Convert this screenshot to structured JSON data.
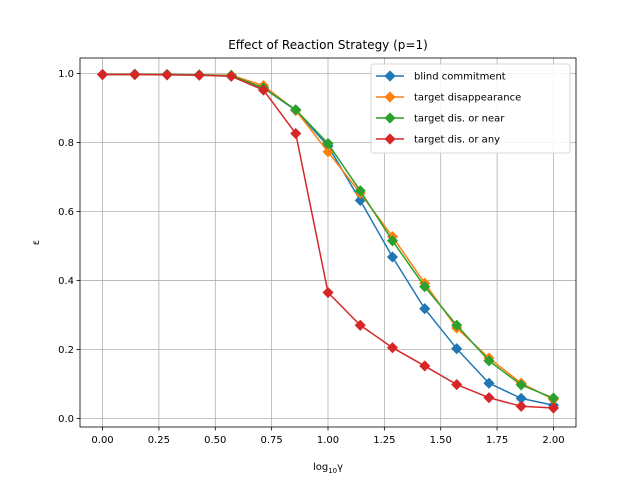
{
  "chart_data": {
    "type": "line",
    "title": "Effect of Reaction Strategy (p=1)",
    "xlabel_base": "log",
    "xlabel_sub": "10",
    "xlabel_var": "γ",
    "ylabel": "ε",
    "xlim": [
      -0.1,
      2.1
    ],
    "ylim": [
      -0.025,
      1.045
    ],
    "grid": true,
    "legend_position": "top-right",
    "xticks": [
      0.0,
      0.25,
      0.5,
      0.75,
      1.0,
      1.25,
      1.5,
      1.75,
      2.0
    ],
    "xtick_labels": [
      "0.00",
      "0.25",
      "0.50",
      "0.75",
      "1.00",
      "1.25",
      "1.50",
      "1.75",
      "2.00"
    ],
    "yticks": [
      0.0,
      0.2,
      0.4,
      0.6,
      0.8,
      1.0
    ],
    "ytick_labels": [
      "0.0",
      "0.2",
      "0.4",
      "0.6",
      "0.8",
      "1.0"
    ],
    "x": [
      0.0,
      0.143,
      0.286,
      0.429,
      0.571,
      0.714,
      0.857,
      1.0,
      1.143,
      1.286,
      1.429,
      1.571,
      1.714,
      1.857,
      2.0
    ],
    "series": [
      {
        "name": "blind commitment",
        "color": "#1f77b4",
        "values": [
          0.997,
          0.998,
          0.997,
          0.996,
          0.993,
          0.958,
          0.893,
          0.79,
          0.632,
          0.468,
          0.318,
          0.202,
          0.102,
          0.058,
          0.038
        ]
      },
      {
        "name": "target disappearance",
        "color": "#ff7f0e",
        "values": [
          0.997,
          0.997,
          0.997,
          0.996,
          0.995,
          0.965,
          0.893,
          0.773,
          0.653,
          0.527,
          0.392,
          0.262,
          0.175,
          0.102,
          0.055
        ]
      },
      {
        "name": "target dis. or near",
        "color": "#2ca02c",
        "values": [
          0.997,
          0.997,
          0.997,
          0.996,
          0.994,
          0.958,
          0.895,
          0.797,
          0.66,
          0.515,
          0.382,
          0.27,
          0.167,
          0.097,
          0.059
        ]
      },
      {
        "name": "target dis. or any",
        "color": "#d62728",
        "values": [
          0.997,
          0.997,
          0.996,
          0.995,
          0.992,
          0.952,
          0.826,
          0.365,
          0.27,
          0.205,
          0.152,
          0.098,
          0.06,
          0.035,
          0.03
        ]
      }
    ]
  }
}
